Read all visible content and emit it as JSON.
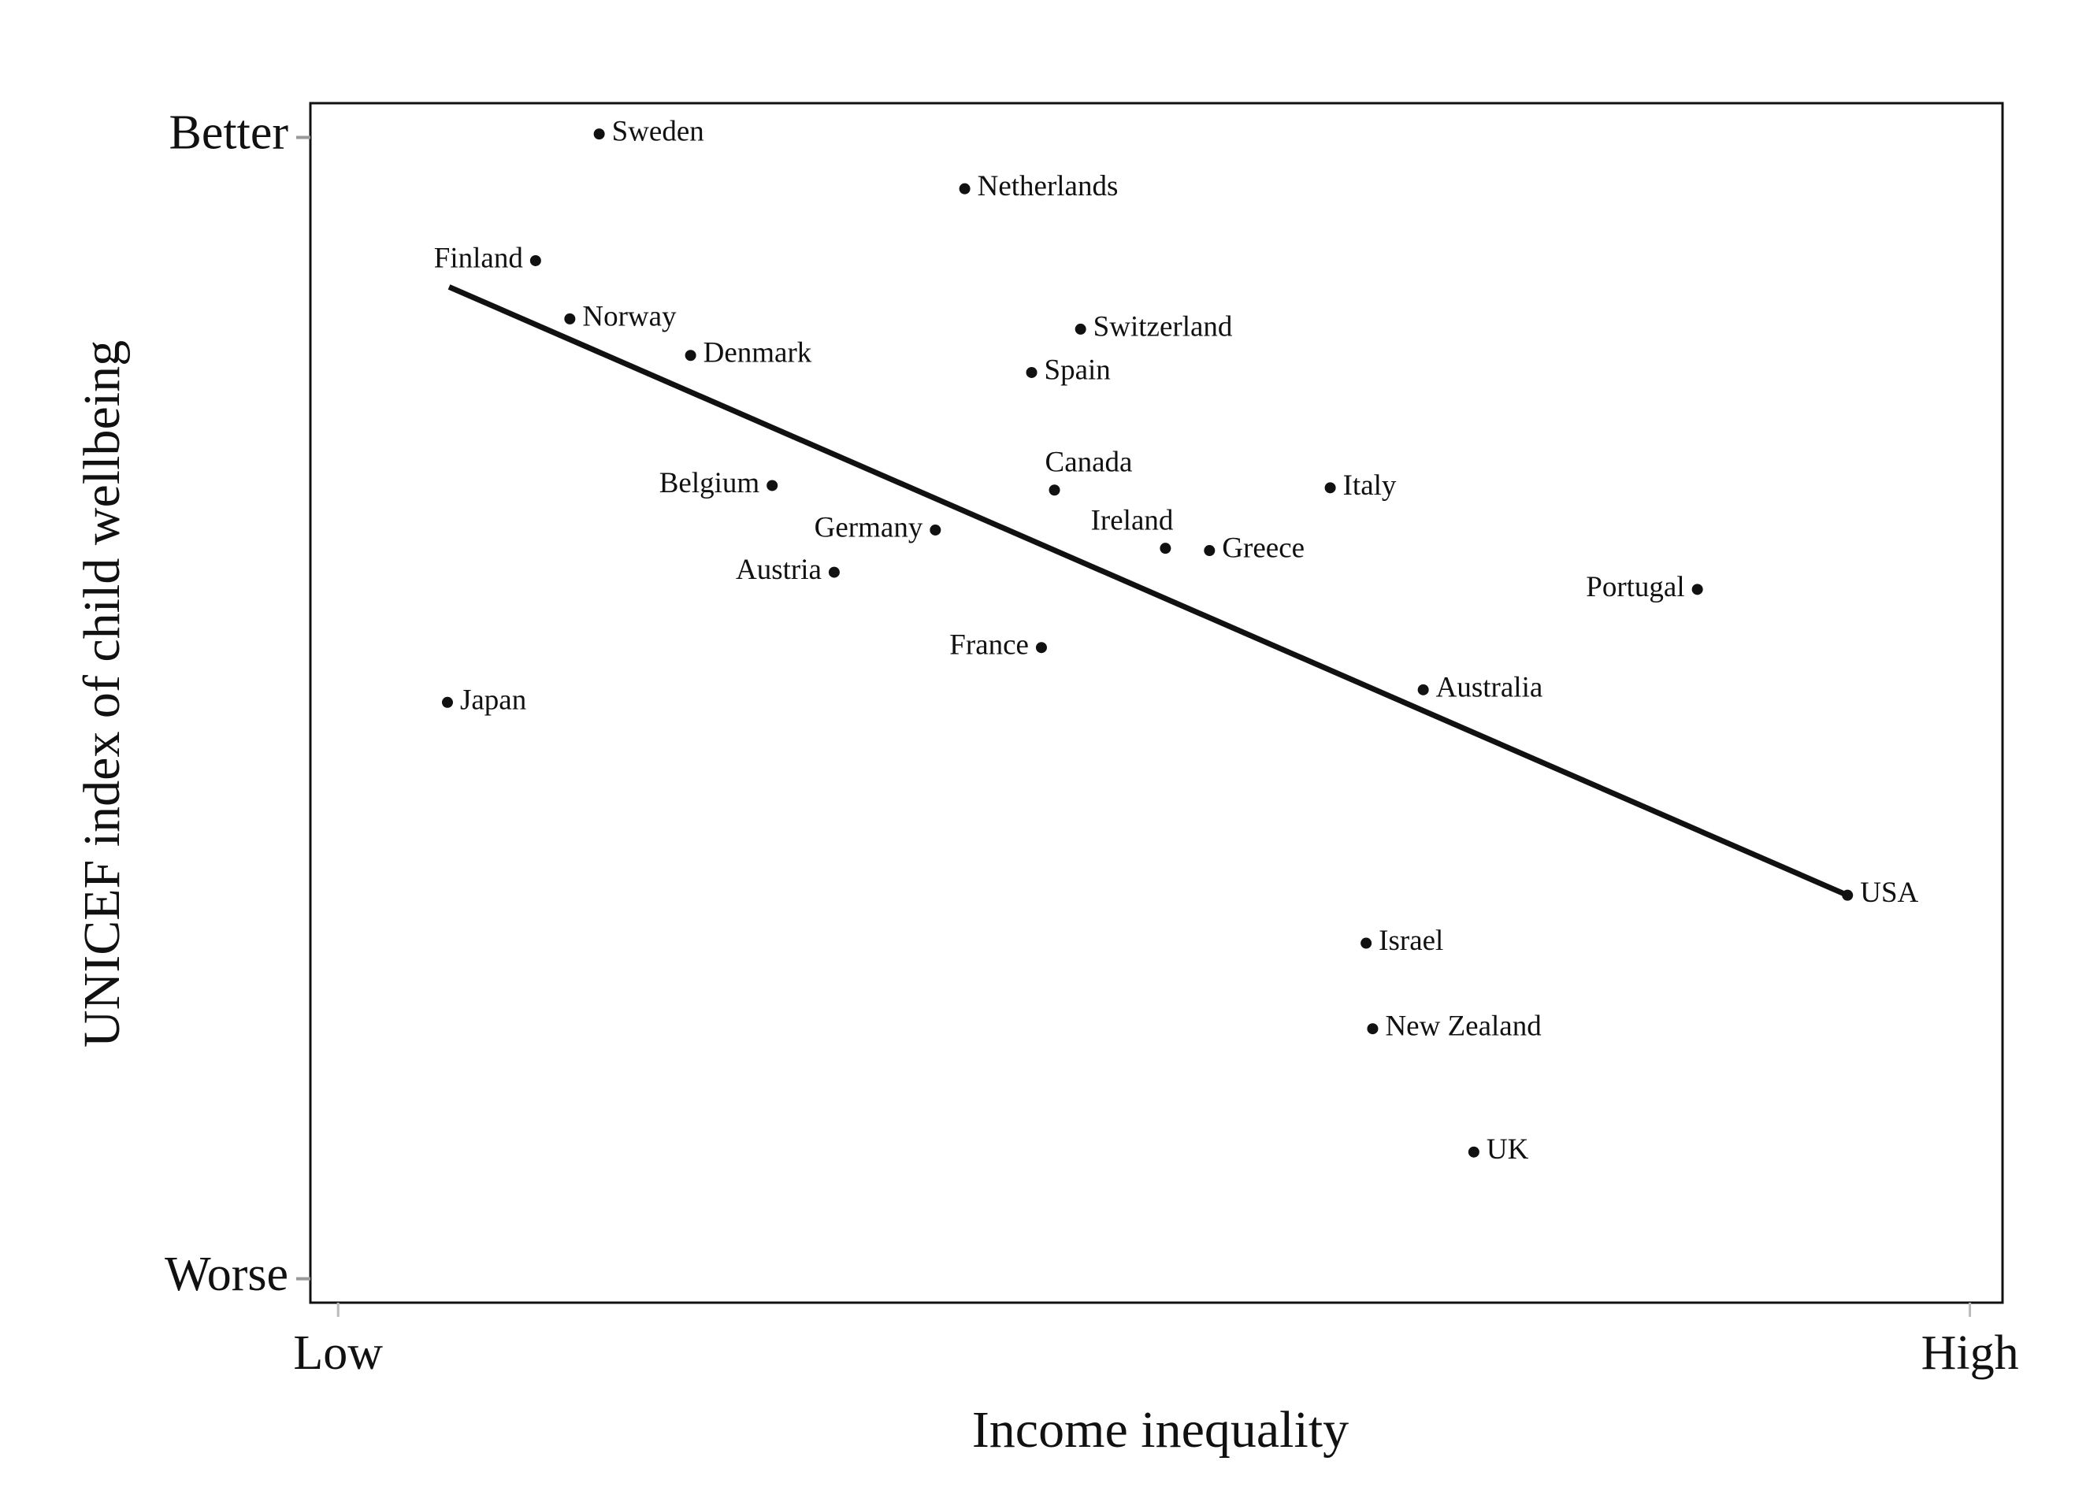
{
  "chart_data": {
    "type": "scatter",
    "x_label": "Income inequality",
    "y_label": "UNICEF index of child wellbeing",
    "xlim": [
      -0.017,
      1.02
    ],
    "ylim": [
      -0.021,
      1.03
    ],
    "xticks": [
      {
        "value": 0,
        "label": "Low"
      },
      {
        "value": 1,
        "label": "High"
      }
    ],
    "yticks": [
      {
        "value": 0,
        "label": "Worse"
      },
      {
        "value": 1,
        "label": "Better"
      }
    ],
    "grid": false,
    "color": "#111111",
    "categories": [
      "Sweden",
      "Netherlands",
      "Finland",
      "Norway",
      "Denmark",
      "Switzerland",
      "Spain",
      "Belgium",
      "Canada",
      "Italy",
      "Germany",
      "Ireland",
      "Greece",
      "Austria",
      "Portugal",
      "France",
      "Japan",
      "Australia",
      "USA",
      "Israel",
      "New Zealand",
      "UK"
    ],
    "x": [
      0.16,
      0.384,
      0.121,
      0.142,
      0.216,
      0.455,
      0.425,
      0.266,
      0.439,
      0.608,
      0.366,
      0.507,
      0.534,
      0.304,
      0.833,
      0.431,
      0.067,
      0.665,
      0.925,
      0.63,
      0.634,
      0.696
    ],
    "values": [
      1.003,
      0.955,
      0.892,
      0.841,
      0.809,
      0.832,
      0.794,
      0.695,
      0.691,
      0.693,
      0.656,
      0.64,
      0.638,
      0.619,
      0.604,
      0.553,
      0.505,
      0.516,
      0.336,
      0.294,
      0.219,
      0.111
    ],
    "trend_line": {
      "x": [
        0.068,
        0.925
      ],
      "values": [
        0.869,
        0.336
      ]
    }
  }
}
